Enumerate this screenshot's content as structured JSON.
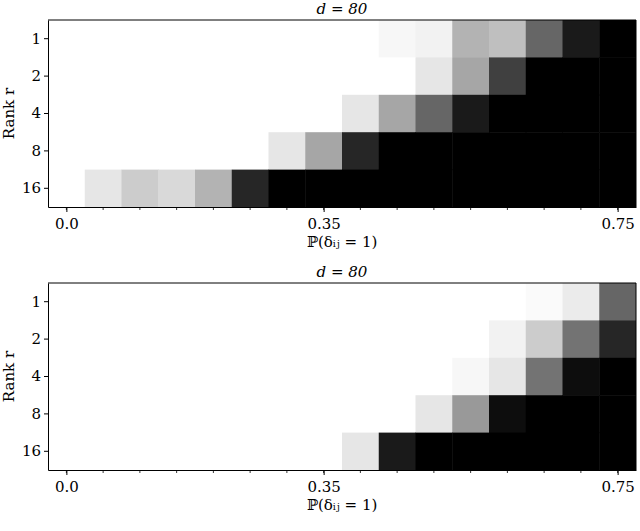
{
  "chart_data": [
    {
      "type": "heatmap",
      "title": "d = 80",
      "x_label": "ℙ(δᵢⱼ = 1)",
      "y_label": "Rank r",
      "x": [
        0,
        0.05,
        0.1,
        0.15,
        0.2,
        0.25,
        0.3,
        0.35,
        0.4,
        0.45,
        0.5,
        0.55,
        0.6,
        0.65,
        0.7,
        0.75
      ],
      "categories": [
        "1",
        "2",
        "4",
        "8",
        "16"
      ],
      "values": [
        [
          0,
          0,
          0,
          0,
          0,
          0,
          0,
          0,
          0,
          0.03,
          0.05,
          0.3,
          0.25,
          0.6,
          0.9,
          1
        ],
        [
          0,
          0,
          0,
          0,
          0,
          0,
          0,
          0,
          0,
          0,
          0.1,
          0.35,
          0.75,
          1,
          1,
          1
        ],
        [
          0,
          0,
          0,
          0,
          0,
          0,
          0,
          0,
          0.1,
          0.35,
          0.6,
          0.9,
          1,
          1,
          1,
          1
        ],
        [
          0,
          0,
          0,
          0,
          0,
          0,
          0.1,
          0.35,
          0.85,
          1,
          1,
          1,
          1,
          1,
          1,
          1
        ],
        [
          0,
          0.1,
          0.2,
          0.15,
          0.3,
          0.85,
          1,
          1,
          1,
          1,
          1,
          1,
          1,
          1,
          1,
          1
        ]
      ],
      "zlim": [
        0,
        1
      ],
      "colors": [
        "#ffffff",
        "#000000"
      ],
      "xlim": [
        -0.025,
        0.775
      ],
      "xticks": [
        {
          "value": 0,
          "label": "0.0"
        },
        0.35,
        0.75
      ]
    },
    {
      "type": "heatmap",
      "title": "d = 80",
      "x_label": "ℙ(δᵢⱼ = 1)",
      "y_label": "Rank r",
      "x": [
        0,
        0.05,
        0.1,
        0.15,
        0.2,
        0.25,
        0.3,
        0.35,
        0.4,
        0.45,
        0.5,
        0.55,
        0.6,
        0.65,
        0.7,
        0.75
      ],
      "categories": [
        "1",
        "2",
        "4",
        "8",
        "16"
      ],
      "values": [
        [
          0,
          0,
          0,
          0,
          0,
          0,
          0,
          0,
          0,
          0,
          0,
          0,
          0,
          0.02,
          0.08,
          0.6
        ],
        [
          0,
          0,
          0,
          0,
          0,
          0,
          0,
          0,
          0,
          0,
          0,
          0,
          0.05,
          0.2,
          0.55,
          0.85
        ],
        [
          0,
          0,
          0,
          0,
          0,
          0,
          0,
          0,
          0,
          0,
          0,
          0.03,
          0.1,
          0.55,
          0.95,
          1
        ],
        [
          0,
          0,
          0,
          0,
          0,
          0,
          0,
          0,
          0,
          0,
          0.1,
          0.4,
          0.95,
          1,
          1,
          1
        ],
        [
          0,
          0,
          0,
          0,
          0,
          0,
          0,
          0,
          0.1,
          0.9,
          1,
          1,
          1,
          1,
          1,
          1
        ]
      ],
      "zlim": [
        0,
        1
      ],
      "colors": [
        "#ffffff",
        "#000000"
      ],
      "xlim": [
        -0.025,
        0.775
      ],
      "xticks": [
        {
          "value": 0,
          "label": "0.0"
        },
        0.35,
        0.75
      ]
    }
  ]
}
